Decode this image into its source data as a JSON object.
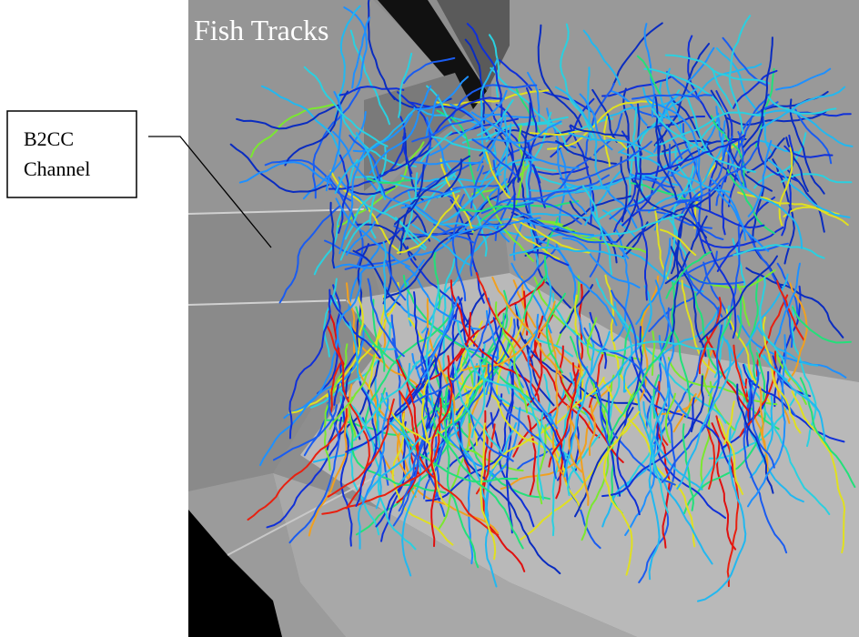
{
  "image": {
    "title": "Fish Tracks"
  },
  "callout": {
    "lines": [
      "B2CC",
      "Channel"
    ]
  }
}
